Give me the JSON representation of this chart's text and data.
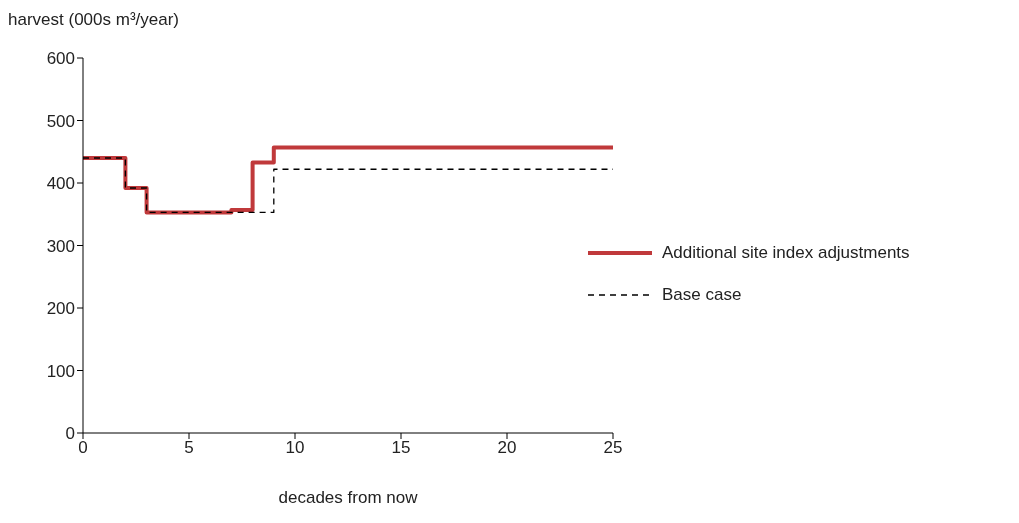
{
  "chart_data": {
    "type": "step",
    "ylabel": "harvest (000s m³/year)",
    "xlabel": "decades from now",
    "x": [
      0,
      2,
      3,
      7,
      8,
      9,
      25
    ],
    "series": [
      {
        "name": "Additional site index adjustments",
        "color": "#c0393b",
        "values": [
          440,
          392,
          353,
          357,
          433,
          457,
          457
        ],
        "line_style": "solid"
      },
      {
        "name": "Base case",
        "color": "#000000",
        "values": [
          440,
          392,
          353,
          353,
          353,
          422,
          422
        ],
        "line_style": "dashed"
      }
    ],
    "xlim": [
      0,
      25
    ],
    "xticks": [
      0,
      5,
      10,
      15,
      20,
      25
    ],
    "ylim": [
      0,
      600
    ],
    "yticks": [
      0,
      100,
      200,
      300,
      400,
      500,
      600
    ],
    "grid": false,
    "legend": "right",
    "marker": "none"
  }
}
